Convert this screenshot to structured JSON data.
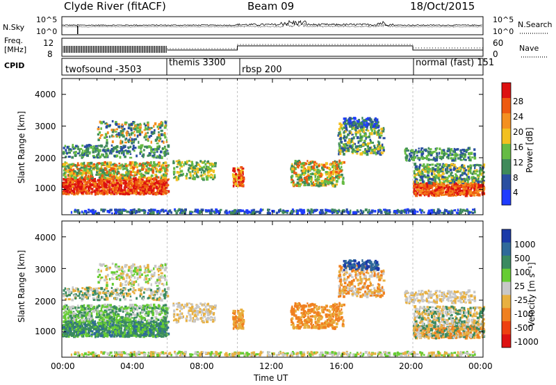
{
  "header": {
    "station": "Clyde River (fitACF)",
    "beam": "Beam 09",
    "date": "18/Oct/2015"
  },
  "nsky_panel": {
    "left_label": "N.Sky",
    "right_label": "N.Search",
    "left_ticks": [
      "10^5",
      "10^0"
    ],
    "right_ticks": [
      "10^5",
      "10^0"
    ]
  },
  "freq_panel": {
    "left_label_1": "Freq.",
    "left_label_2": "[MHz]",
    "right_label": "Nave",
    "left_ticks": [
      "12",
      "8"
    ],
    "right_ticks": [
      "60",
      "0"
    ]
  },
  "cpid": {
    "label": "CPID",
    "segments": [
      {
        "name": "twofsound -3503",
        "start_hour": 0
      },
      {
        "name": "themis 3300",
        "start_hour": 6
      },
      {
        "name": "rbsp 200",
        "start_hour": 10
      },
      {
        "name": "normal (fast) 151",
        "start_hour": 20
      }
    ]
  },
  "chart_data": [
    {
      "type": "heatmap",
      "ylabel": "Slant Range [km]",
      "y_ticks": [
        "1000",
        "2000",
        "3000",
        "4000"
      ],
      "ylim": [
        200,
        4500
      ],
      "xlim": [
        0,
        24
      ],
      "colorbar_label": "Power [dB]",
      "colorbar_ticks": [
        "4",
        "8",
        "12",
        "16",
        "20",
        "24",
        "28"
      ],
      "colors": [
        "#1f3cff",
        "#2a4fa0",
        "#3f8a5a",
        "#66bb44",
        "#f2c020",
        "#f49020",
        "#ee5a10",
        "#dd1111"
      ]
    },
    {
      "type": "heatmap",
      "ylabel": "Slant Range [km]",
      "y_ticks": [
        "1000",
        "2000",
        "3000",
        "4000"
      ],
      "ylim": [
        200,
        4500
      ],
      "xlim": [
        0,
        24
      ],
      "colorbar_label": "Velocity [m s⁻¹]",
      "colorbar_ticks": [
        "1000",
        "500",
        "100",
        "25",
        "-25",
        "-100",
        "-500",
        "-1000"
      ],
      "colors": [
        "#1a3aa8",
        "#2f6a9a",
        "#3a8a60",
        "#66cc33",
        "#c8c8c8",
        "#e8b040",
        "#f08020",
        "#ee4010",
        "#dd1111"
      ]
    }
  ],
  "x_axis": {
    "ticks": [
      "00:00",
      "04:00",
      "08:00",
      "12:00",
      "16:00",
      "20:00",
      "00:00"
    ],
    "label": "Time UT"
  }
}
